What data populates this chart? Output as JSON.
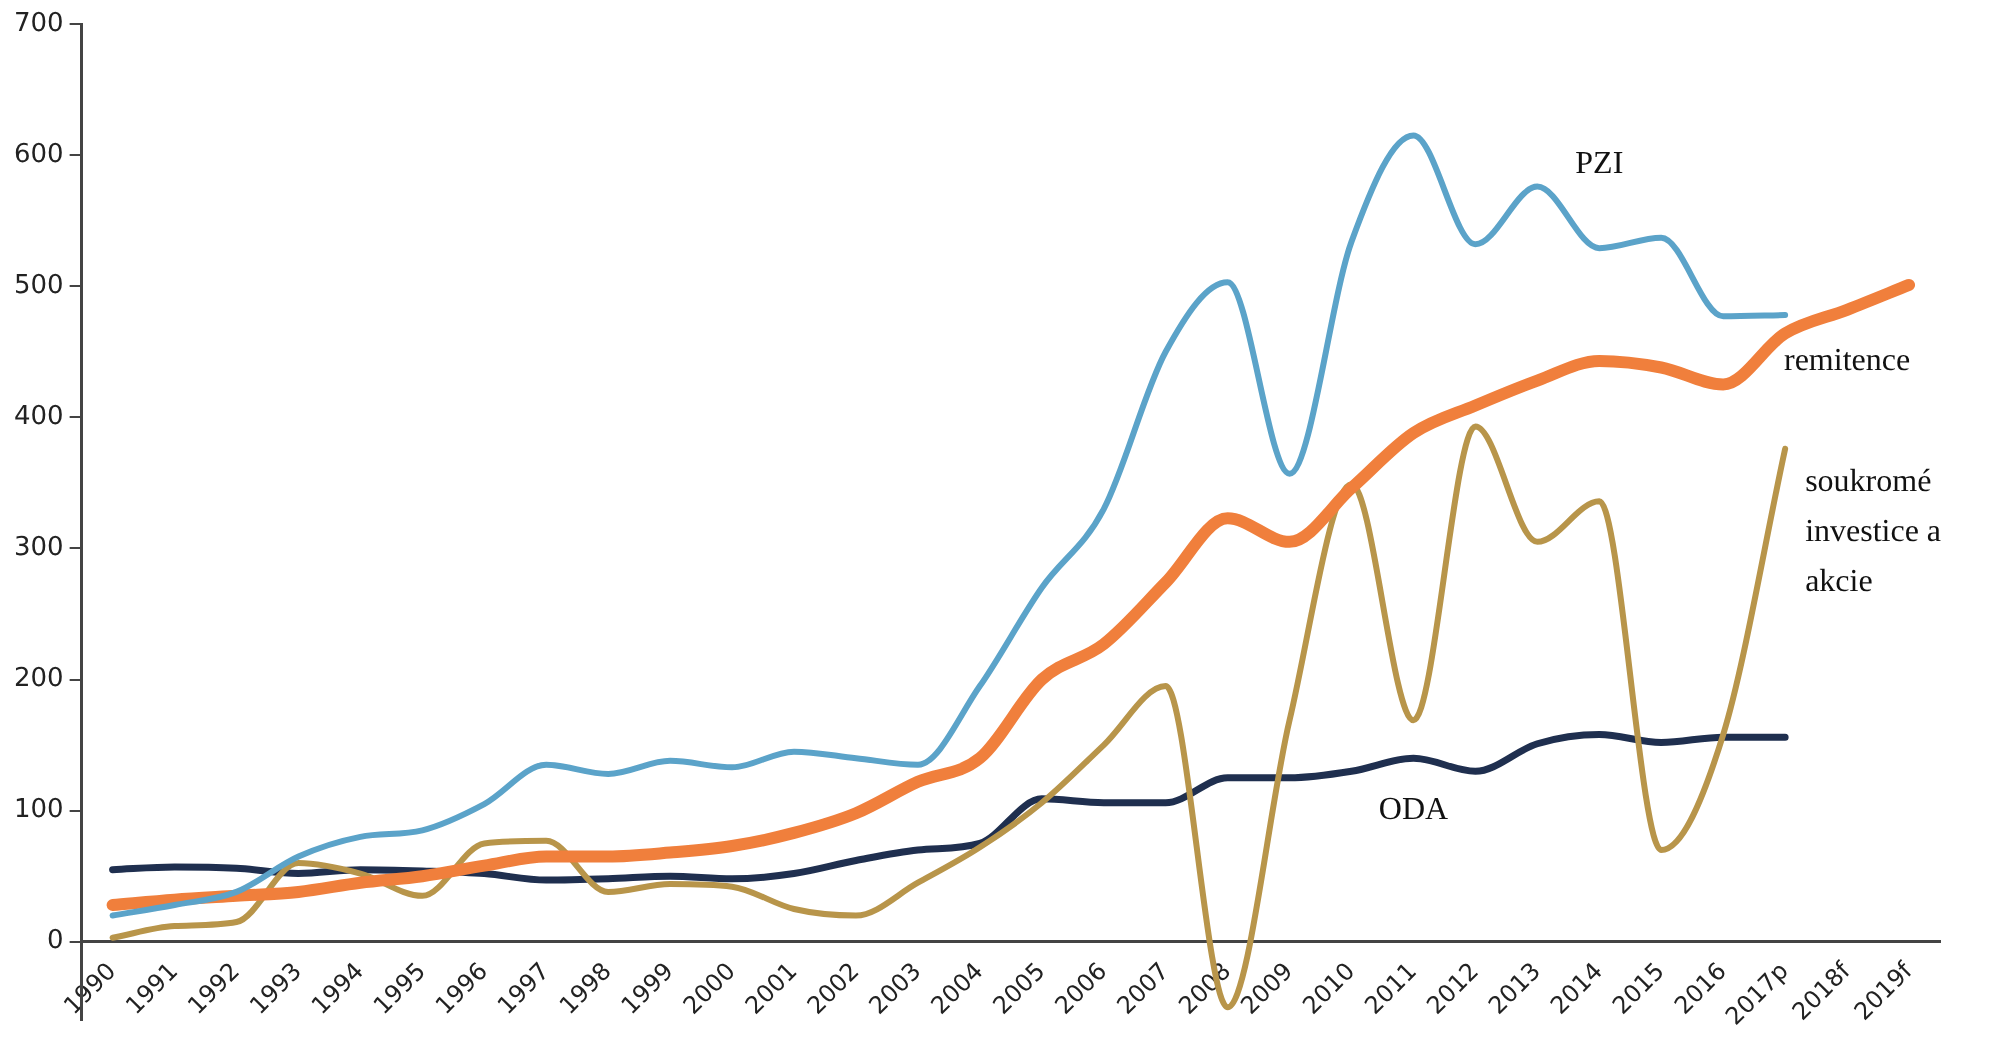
{
  "chart_data": {
    "type": "line",
    "categories": [
      "1990",
      "1991",
      "1992",
      "1993",
      "1994",
      "1995",
      "1996",
      "1997",
      "1998",
      "1999",
      "2000",
      "2001",
      "2002",
      "2003",
      "2004",
      "2005",
      "2006",
      "2007",
      "2008",
      "2009",
      "2010",
      "2011",
      "2012",
      "2013",
      "2014",
      "2015",
      "2016",
      "2017p",
      "2018f",
      "2019f"
    ],
    "series": [
      {
        "name": "PZI",
        "color": "#5ba3c9",
        "values": [
          20,
          28,
          38,
          65,
          80,
          85,
          105,
          135,
          128,
          138,
          133,
          145,
          140,
          135,
          195,
          270,
          330,
          450,
          503,
          357,
          534,
          615,
          532,
          576,
          529,
          537,
          477,
          478,
          null,
          null
        ]
      },
      {
        "name": "remitence",
        "color": "#f07f3c",
        "values": [
          28,
          32,
          35,
          38,
          45,
          50,
          58,
          65,
          65,
          68,
          73,
          83,
          98,
          122,
          140,
          200,
          227,
          274,
          323,
          305,
          346,
          388,
          409,
          428,
          443,
          438,
          425,
          464,
          482,
          501
        ]
      },
      {
        "name": "soukromé investice a akcie",
        "color": "#b8954a",
        "values": [
          3,
          12,
          15,
          60,
          52,
          35,
          75,
          77,
          38,
          44,
          42,
          25,
          20,
          45,
          72,
          106,
          150,
          195,
          -50,
          169,
          349,
          169,
          393,
          305,
          336,
          70,
          158,
          376,
          null,
          null
        ]
      },
      {
        "name": "ODA",
        "color": "#1f2f4f",
        "values": [
          55,
          57,
          56,
          52,
          55,
          54,
          52,
          47,
          48,
          50,
          48,
          52,
          62,
          70,
          75,
          109,
          106,
          106,
          125,
          125,
          130,
          140,
          130,
          151,
          158,
          152,
          156,
          156,
          null,
          null
        ]
      }
    ],
    "ylim": [
      -60,
      700
    ],
    "yticks": [
      0,
      100,
      200,
      300,
      400,
      500,
      600,
      700
    ],
    "grid": false,
    "legend": false,
    "marker": "none",
    "line_style": "solid"
  }
}
